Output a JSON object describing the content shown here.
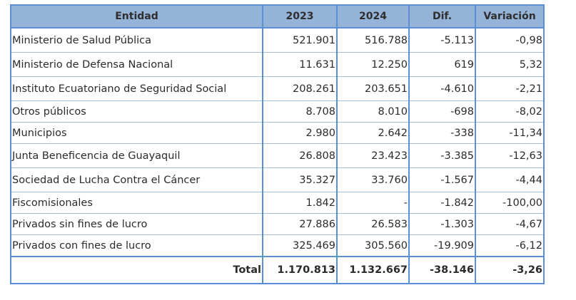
{
  "table": {
    "headers": [
      "Entidad",
      "2023",
      "2024",
      "Dif.",
      "Variación"
    ],
    "rows": [
      [
        "Ministerio de Salud Pública",
        "521.901",
        "516.788",
        "-5.113",
        "-0,98"
      ],
      [
        "Ministerio de Defensa Nacional",
        "11.631",
        "12.250",
        "619",
        "5,32"
      ],
      [
        "Instituto Ecuatoriano de Seguridad Social",
        "208.261",
        "203.651",
        "-4.610",
        "-2,21"
      ],
      [
        "Otros públicos",
        "8.708",
        "8.010",
        "-698",
        "-8,02"
      ],
      [
        "Municipios",
        "2.980",
        "2.642",
        "-338",
        "-11,34"
      ],
      [
        "Junta Beneficencia de Guayaquil",
        "26.808",
        "23.423",
        "-3.385",
        "-12,63"
      ],
      [
        "Sociedad de Lucha Contra el Cáncer",
        "35.327",
        "33.760",
        "-1.567",
        "-4,44"
      ],
      [
        "Fiscomisionales",
        "1.842",
        "-",
        "-1.842",
        "-100,00"
      ],
      [
        "Privados sin fines de lucro",
        "27.886",
        "26.583",
        "-1.303",
        "-4,67"
      ],
      [
        "Privados con fines de lucro",
        "325.469",
        "305.560",
        "-19.909",
        "-6,12"
      ]
    ],
    "total": [
      "Total",
      "1.170.813",
      "1.132.667",
      "-38.146",
      "-3,26"
    ]
  },
  "colors": {
    "header_bg": "#95b3d7",
    "border": "#5b8fd4"
  }
}
